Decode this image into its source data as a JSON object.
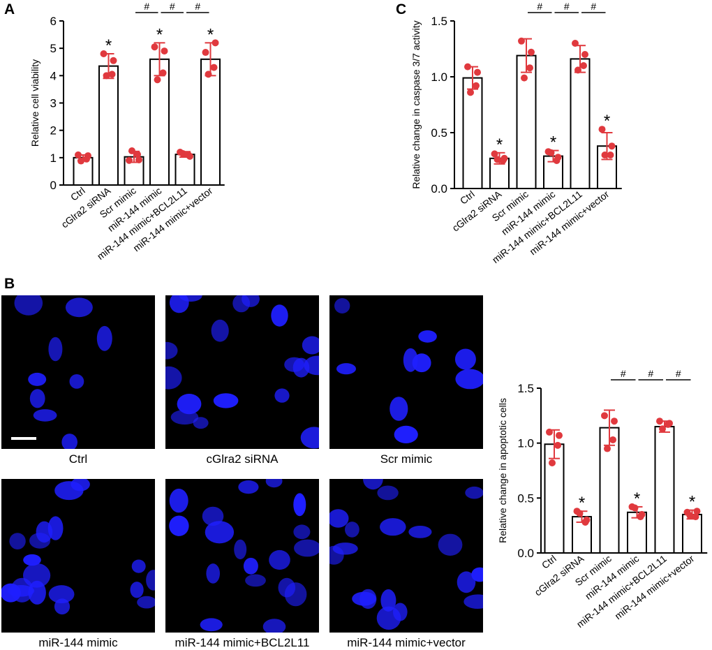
{
  "panels": {
    "a": "A",
    "b": "B",
    "c": "C"
  },
  "colors": {
    "points": "#e0393e",
    "bars": "#000000",
    "nuclei": "#1f1fff",
    "background": "#000000"
  },
  "micrographs": {
    "labels": [
      "Ctrl",
      "cGlra2 siRNA",
      "Scr mimic",
      "miR-144 mimic",
      "miR-144 mimic+BCL2L11",
      "miR-144 mimic+vector"
    ],
    "stain": "blue-nuclei",
    "scale_bar": {
      "shown_on": "Ctrl"
    }
  },
  "chart_data": [
    {
      "id": "A",
      "type": "bar",
      "ylabel": "Relative cell viability",
      "ylim": [
        0,
        6
      ],
      "yticks": [
        0,
        1,
        2,
        3,
        4,
        5,
        6
      ],
      "yticklabels": [
        "0",
        "1",
        "2",
        "3",
        "4",
        "5",
        "6"
      ],
      "categories": [
        "Ctrl",
        "cGlra2 siRNA",
        "Scr mimic",
        "miR-144 mimic",
        "miR-144 mimic+BCL2L11",
        "miR-144 mimic+vector"
      ],
      "values": [
        1.0,
        4.35,
        1.03,
        4.6,
        1.12,
        4.6
      ],
      "errors": [
        0.1,
        0.45,
        0.2,
        0.6,
        0.1,
        0.6
      ],
      "points": [
        [
          1.1,
          0.95,
          0.88,
          1.07
        ],
        [
          4.8,
          4.05,
          4.0,
          4.55
        ],
        [
          0.9,
          1.12,
          1.25,
          0.92
        ],
        [
          5.05,
          4.1,
          3.85,
          4.9
        ],
        [
          1.2,
          1.1,
          1.15,
          1.05
        ],
        [
          4.85,
          4.3,
          4.05,
          5.2
        ]
      ],
      "annotations": [
        {
          "index": 1,
          "text": "*"
        },
        {
          "index": 3,
          "text": "*"
        },
        {
          "index": 5,
          "text": "*"
        }
      ],
      "brackets": [
        {
          "from": 2,
          "to": 3,
          "text": "#"
        },
        {
          "from": 3,
          "to": 4,
          "text": "#"
        },
        {
          "from": 4,
          "to": 5,
          "text": "#"
        }
      ]
    },
    {
      "id": "C",
      "type": "bar",
      "ylabel": "Relative change in caspase 3/7 activity",
      "ylim": [
        0,
        1.5
      ],
      "yticks": [
        0,
        0.5,
        1.0,
        1.5
      ],
      "yticklabels": [
        "0.0",
        "0.5",
        "1.0",
        "1.5"
      ],
      "categories": [
        "Ctrl",
        "cGlra2 siRNA",
        "Scr mimic",
        "miR-144 mimic",
        "miR-144 mimic+BCL2L11",
        "miR-144 mimic+vector"
      ],
      "values": [
        0.99,
        0.27,
        1.19,
        0.29,
        1.16,
        0.38
      ],
      "errors": [
        0.1,
        0.05,
        0.15,
        0.05,
        0.12,
        0.12
      ],
      "points": [
        [
          1.09,
          0.92,
          0.86,
          1.04
        ],
        [
          0.31,
          0.25,
          0.26,
          0.27
        ],
        [
          1.32,
          1.08,
          0.99,
          1.22
        ],
        [
          0.33,
          0.25,
          0.32,
          0.28
        ],
        [
          1.3,
          1.1,
          1.06,
          1.2
        ],
        [
          0.53,
          0.3,
          0.3,
          0.38
        ]
      ],
      "annotations": [
        {
          "index": 1,
          "text": "*"
        },
        {
          "index": 3,
          "text": "*"
        },
        {
          "index": 5,
          "text": "*"
        }
      ],
      "brackets": [
        {
          "from": 2,
          "to": 3,
          "text": "#"
        },
        {
          "from": 3,
          "to": 4,
          "text": "#"
        },
        {
          "from": 4,
          "to": 5,
          "text": "#"
        }
      ]
    },
    {
      "id": "B",
      "type": "bar",
      "ylabel": "Relative change in apoptotic cells",
      "ylim": [
        0,
        1.5
      ],
      "yticks": [
        0,
        0.5,
        1.0,
        1.5
      ],
      "yticklabels": [
        "0.0",
        "0.5",
        "1.0",
        "1.5"
      ],
      "categories": [
        "Ctrl",
        "cGlra2 siRNA",
        "Scr mimic",
        "miR-144 mimic",
        "miR-144 mimic+BCL2L11",
        "miR-144 mimic+vector"
      ],
      "values": [
        0.99,
        0.33,
        1.14,
        0.37,
        1.15,
        0.35
      ],
      "errors": [
        0.13,
        0.05,
        0.16,
        0.05,
        0.05,
        0.04
      ],
      "points": [
        [
          1.1,
          0.98,
          0.82,
          1.07
        ],
        [
          0.38,
          0.28,
          0.36,
          0.3
        ],
        [
          1.25,
          1.03,
          0.95,
          1.2
        ],
        [
          0.42,
          0.33,
          0.41,
          0.35
        ],
        [
          1.2,
          1.17,
          1.13,
          1.18
        ],
        [
          0.37,
          0.33,
          0.34,
          0.38
        ]
      ],
      "annotations": [
        {
          "index": 1,
          "text": "*"
        },
        {
          "index": 3,
          "text": "*"
        },
        {
          "index": 5,
          "text": "*"
        }
      ],
      "brackets": [
        {
          "from": 2,
          "to": 3,
          "text": "#"
        },
        {
          "from": 3,
          "to": 4,
          "text": "#"
        },
        {
          "from": 4,
          "to": 5,
          "text": "#"
        }
      ]
    }
  ]
}
